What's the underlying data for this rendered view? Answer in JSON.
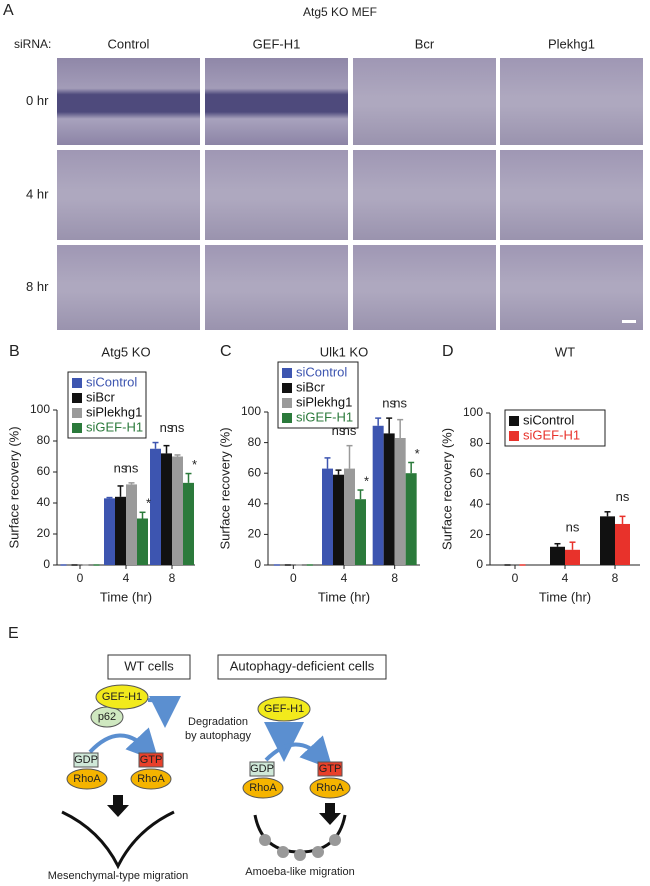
{
  "panel_a": {
    "label": "A",
    "title": "Atg5 KO MEF",
    "row_header": "siRNA:",
    "columns": [
      "Control",
      "GEF-H1",
      "Bcr",
      "Plekhg1"
    ],
    "rows": [
      "0 hr",
      "4 hr",
      "8 hr"
    ]
  },
  "chart_data": [
    {
      "type": "bar",
      "panel": "B",
      "title": "Atg5 KO",
      "xlabel": "Time (hr)",
      "ylabel": "Surface recovery (%)",
      "categories": [
        "0",
        "4",
        "8"
      ],
      "ylim": [
        0,
        100
      ],
      "yticks": [
        0,
        20,
        40,
        60,
        80,
        100
      ],
      "series": [
        {
          "name": "siControl",
          "color": "#3d55b0",
          "label_color": "#3d55b0",
          "values": [
            0,
            43,
            75
          ],
          "errors": [
            0,
            0.5,
            4
          ]
        },
        {
          "name": "siBcr",
          "color": "#111111",
          "label_color": "#111111",
          "values": [
            0,
            44,
            72
          ],
          "errors": [
            0,
            7,
            5
          ]
        },
        {
          "name": "siPlekhg1",
          "color": "#9a9a9a",
          "label_color": "#111111",
          "values": [
            0,
            52,
            70
          ],
          "errors": [
            0,
            1,
            1
          ]
        },
        {
          "name": "siGEF-H1",
          "color": "#2b7a3b",
          "label_color": "#2b7a3b",
          "values": [
            0,
            30,
            53
          ],
          "errors": [
            0,
            4,
            6
          ]
        }
      ],
      "significance": [
        {
          "category": "4",
          "labels": [
            "ns",
            "ns",
            "*"
          ]
        },
        {
          "category": "8",
          "labels": [
            "ns",
            "ns",
            "*"
          ]
        }
      ]
    },
    {
      "type": "bar",
      "panel": "C",
      "title": "Ulk1 KO",
      "xlabel": "Time (hr)",
      "ylabel": "Surface recovery (%)",
      "categories": [
        "0",
        "4",
        "8"
      ],
      "ylim": [
        0,
        100
      ],
      "yticks": [
        0,
        20,
        40,
        60,
        80,
        100
      ],
      "series": [
        {
          "name": "siControl",
          "color": "#3d55b0",
          "label_color": "#3d55b0",
          "values": [
            0,
            63,
            91
          ],
          "errors": [
            0,
            7,
            5
          ]
        },
        {
          "name": "siBcr",
          "color": "#111111",
          "label_color": "#111111",
          "values": [
            0,
            59,
            86
          ],
          "errors": [
            0,
            3,
            10
          ]
        },
        {
          "name": "siPlekhg1",
          "color": "#9a9a9a",
          "label_color": "#111111",
          "values": [
            0,
            63,
            83
          ],
          "errors": [
            0,
            15,
            12
          ]
        },
        {
          "name": "siGEF-H1",
          "color": "#2b7a3b",
          "label_color": "#2b7a3b",
          "values": [
            0,
            43,
            60
          ],
          "errors": [
            0,
            6,
            7
          ]
        }
      ],
      "significance": [
        {
          "category": "4",
          "labels": [
            "ns",
            "ns",
            "*"
          ]
        },
        {
          "category": "8",
          "labels": [
            "ns",
            "ns",
            "*"
          ]
        }
      ]
    },
    {
      "type": "bar",
      "panel": "D",
      "title": "WT",
      "xlabel": "Time (hr)",
      "ylabel": "Surface recovery (%)",
      "categories": [
        "0",
        "4",
        "8"
      ],
      "ylim": [
        0,
        100
      ],
      "yticks": [
        0,
        20,
        40,
        60,
        80,
        100
      ],
      "series": [
        {
          "name": "siControl",
          "color": "#111111",
          "label_color": "#111111",
          "values": [
            0,
            12,
            32
          ],
          "errors": [
            0,
            2,
            3
          ]
        },
        {
          "name": "siGEF-H1",
          "color": "#e8322b",
          "label_color": "#e8322b",
          "values": [
            0,
            10,
            27
          ],
          "errors": [
            0,
            5,
            5
          ]
        }
      ],
      "significance": [
        {
          "category": "4",
          "labels": [
            "ns"
          ]
        },
        {
          "category": "8",
          "labels": [
            "ns"
          ]
        }
      ]
    }
  ],
  "panel_e": {
    "label": "E",
    "wt": {
      "title": "WT cells",
      "gef": "GEF-H1",
      "p62": "p62",
      "degradation": [
        "Degradation",
        "by autophagy"
      ],
      "gdp": "GDP",
      "gtp": "GTP",
      "rhoa": [
        "RhoA",
        "RhoA"
      ],
      "migration": "Mesenchymal-type migration"
    },
    "deficient": {
      "title": "Autophagy-deficient cells",
      "gef": "GEF-H1",
      "gdp": "GDP",
      "gtp": "GTP",
      "rhoa": [
        "RhoA",
        "RhoA"
      ],
      "migration": "Amoeba-like migration"
    }
  }
}
